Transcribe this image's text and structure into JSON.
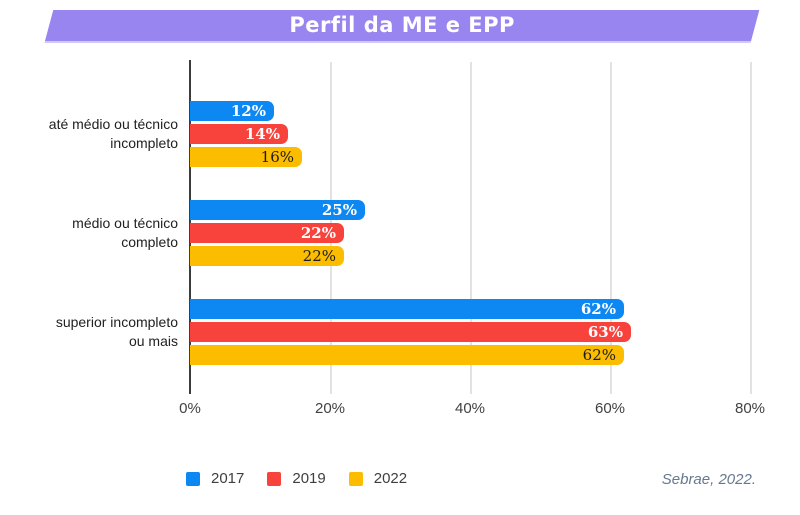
{
  "header": {
    "title": "Perfil da ME e EPP",
    "banner_color": "#9885f0"
  },
  "chart_data": {
    "type": "bar",
    "orientation": "horizontal",
    "title": "Perfil da ME e EPP",
    "categories": [
      "até médio ou técnico\nincompleto",
      "médio ou técnico\ncompleto",
      "superior incompleto\nou mais"
    ],
    "series": [
      {
        "name": "2017",
        "color": "#0d87f1",
        "label_color": "#ffffff",
        "values": [
          12,
          25,
          62
        ]
      },
      {
        "name": "2019",
        "color": "#f8423c",
        "label_color": "#ffffff",
        "values": [
          14,
          22,
          63
        ]
      },
      {
        "name": "2022",
        "color": "#fcbd00",
        "label_color": "#1c1c1c",
        "values": [
          16,
          22,
          62
        ]
      }
    ],
    "value_suffix": "%",
    "x_ticks": [
      "0%",
      "20%",
      "40%",
      "60%",
      "80%"
    ],
    "x_tick_values": [
      0,
      20,
      40,
      60,
      80
    ],
    "xlim": [
      0,
      83
    ],
    "grid": true,
    "legend_position": "bottom",
    "xlabel": "",
    "ylabel": ""
  },
  "source": {
    "text": "Sebrae, 2022."
  }
}
